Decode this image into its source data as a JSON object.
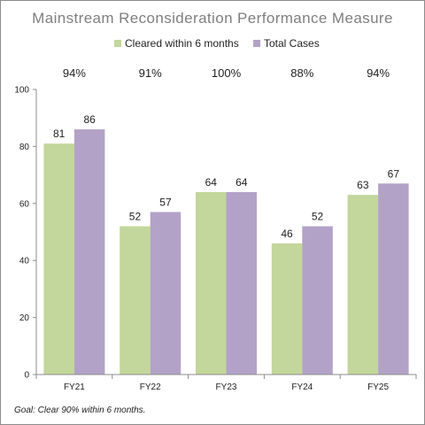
{
  "chart_data": {
    "type": "bar",
    "title": "Mainstream Reconsideration Performance Measure",
    "categories": [
      "FY21",
      "FY22",
      "FY23",
      "FY24",
      "FY25"
    ],
    "series": [
      {
        "name": "Cleared within 6 months",
        "values": [
          81,
          52,
          64,
          46,
          63
        ],
        "color": "#c3d69b"
      },
      {
        "name": "Total Cases",
        "values": [
          86,
          57,
          64,
          52,
          67
        ],
        "color": "#b3a2c7"
      }
    ],
    "percentages": [
      "94%",
      "91%",
      "100%",
      "88%",
      "94%"
    ],
    "ylim": [
      0,
      100
    ],
    "yticks": [
      0,
      20,
      40,
      60,
      80,
      100
    ],
    "xlabel": "",
    "ylabel": "",
    "legend_position": "top",
    "grid": false,
    "footnote": "Goal:  Clear 90% within 6 months."
  }
}
